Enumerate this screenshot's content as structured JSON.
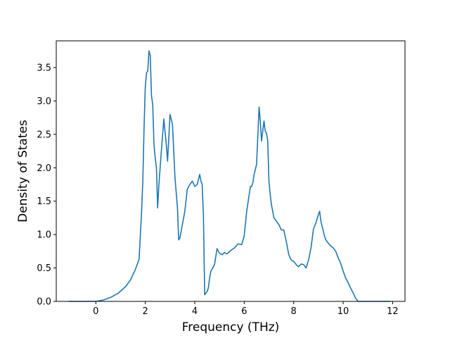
{
  "chart_data": {
    "type": "line",
    "title": "",
    "xlabel": "Frequency (THz)",
    "ylabel": "Density of States",
    "xlim": [
      -1.6,
      12.5
    ],
    "ylim": [
      0,
      3.9
    ],
    "x_ticks": [
      0,
      2,
      4,
      6,
      8,
      10,
      12
    ],
    "y_ticks": [
      0.0,
      0.5,
      1.0,
      1.5,
      2.0,
      2.5,
      3.0,
      3.5
    ],
    "x_tick_labels": [
      "0",
      "2",
      "4",
      "6",
      "8",
      "10",
      "12"
    ],
    "y_tick_labels": [
      "0.0",
      "0.5",
      "1.0",
      "1.5",
      "2.0",
      "2.5",
      "3.0",
      "3.5"
    ],
    "grid": false,
    "line_color": "#1f77b4",
    "series": [
      {
        "x": [
          -1.1,
          -0.5,
          0.0,
          0.3,
          0.6,
          0.9,
          1.2,
          1.4,
          1.6,
          1.75,
          1.85,
          1.9,
          1.95,
          2.0,
          2.05,
          2.1,
          2.15,
          2.2,
          2.25,
          2.3,
          2.35,
          2.4,
          2.45,
          2.5,
          2.55,
          2.65,
          2.75,
          2.85,
          2.9,
          2.95,
          3.0,
          3.1,
          3.2,
          3.3,
          3.35,
          3.4,
          3.45,
          3.5,
          3.6,
          3.7,
          3.8,
          3.9,
          4.0,
          4.1,
          4.2,
          4.25,
          4.3,
          4.35,
          4.4,
          4.5,
          4.55,
          4.6,
          4.65,
          4.8,
          4.9,
          5.0,
          5.1,
          5.2,
          5.3,
          5.45,
          5.6,
          5.75,
          5.9,
          6.0,
          6.1,
          6.2,
          6.25,
          6.3,
          6.35,
          6.4,
          6.5,
          6.6,
          6.65,
          6.7,
          6.75,
          6.8,
          6.85,
          6.9,
          6.95,
          7.0,
          7.05,
          7.1,
          7.15,
          7.2,
          7.3,
          7.4,
          7.5,
          7.6,
          7.7,
          7.75,
          7.8,
          7.85,
          7.9,
          8.0,
          8.1,
          8.2,
          8.3,
          8.4,
          8.5,
          8.6,
          8.7,
          8.8,
          8.9,
          9.0,
          9.05,
          9.1,
          9.2,
          9.25,
          9.3,
          9.4,
          9.5,
          9.6,
          9.7,
          9.8,
          9.9,
          10.0,
          10.1,
          10.2,
          10.3,
          10.4,
          10.5,
          10.6,
          10.7,
          10.8,
          11.0,
          11.5,
          11.9
        ],
        "values": [
          0.0,
          0.0,
          0.0,
          0.02,
          0.06,
          0.12,
          0.22,
          0.32,
          0.48,
          0.63,
          1.35,
          1.8,
          2.6,
          3.2,
          3.42,
          3.45,
          3.75,
          3.68,
          3.08,
          2.95,
          2.35,
          2.15,
          2.0,
          1.4,
          1.75,
          2.25,
          2.73,
          2.35,
          2.1,
          2.45,
          2.8,
          2.65,
          1.85,
          1.4,
          0.92,
          0.95,
          1.05,
          1.15,
          1.35,
          1.68,
          1.75,
          1.8,
          1.72,
          1.75,
          1.9,
          1.8,
          1.75,
          1.3,
          0.1,
          0.15,
          0.2,
          0.35,
          0.45,
          0.55,
          0.79,
          0.72,
          0.7,
          0.73,
          0.71,
          0.76,
          0.8,
          0.86,
          0.85,
          0.98,
          1.35,
          1.6,
          1.72,
          1.72,
          1.78,
          1.9,
          2.05,
          2.91,
          2.7,
          2.4,
          2.55,
          2.7,
          2.55,
          2.52,
          2.4,
          1.8,
          1.6,
          1.45,
          1.35,
          1.25,
          1.2,
          1.15,
          1.07,
          1.07,
          0.9,
          0.8,
          0.7,
          0.66,
          0.62,
          0.6,
          0.55,
          0.52,
          0.56,
          0.55,
          0.5,
          0.62,
          0.8,
          1.08,
          1.18,
          1.3,
          1.35,
          1.2,
          1.05,
          0.97,
          0.92,
          0.87,
          0.83,
          0.8,
          0.75,
          0.65,
          0.57,
          0.45,
          0.35,
          0.28,
          0.2,
          0.13,
          0.05,
          0.0,
          0.0,
          0.0,
          0.0,
          0.0,
          0.0
        ]
      }
    ]
  }
}
